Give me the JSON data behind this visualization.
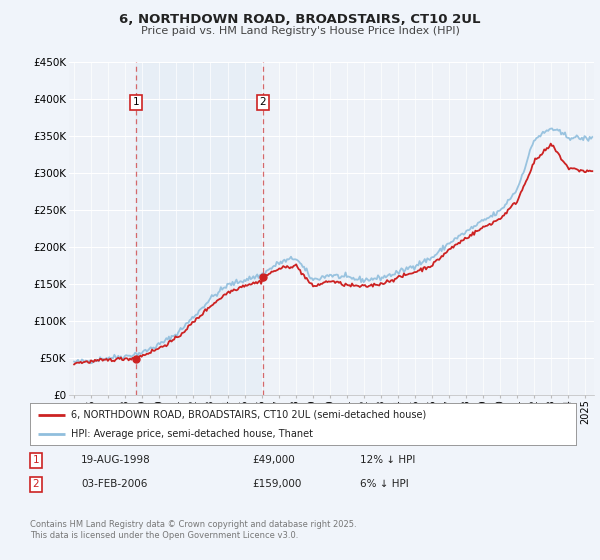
{
  "title": "6, NORTHDOWN ROAD, BROADSTAIRS, CT10 2UL",
  "subtitle": "Price paid vs. HM Land Registry's House Price Index (HPI)",
  "ylim": [
    0,
    450000
  ],
  "xlim_start": 1994.7,
  "xlim_end": 2025.5,
  "background_color": "#f0f4fa",
  "plot_bg_color": "#eef2f8",
  "grid_color": "#ffffff",
  "hpi_color": "#90bedd",
  "price_color": "#cc2222",
  "sale1_x": 1998.62,
  "sale1_y": 49000,
  "sale1_label": "1",
  "sale1_date": "19-AUG-1998",
  "sale1_price": "£49,000",
  "sale1_hpi": "12% ↓ HPI",
  "sale2_x": 2006.08,
  "sale2_y": 159000,
  "sale2_label": "2",
  "sale2_date": "03-FEB-2006",
  "sale2_price": "£159,000",
  "sale2_hpi": "6% ↓ HPI",
  "legend_line1": "6, NORTHDOWN ROAD, BROADSTAIRS, CT10 2UL (semi-detached house)",
  "legend_line2": "HPI: Average price, semi-detached house, Thanet",
  "footer": "Contains HM Land Registry data © Crown copyright and database right 2025.\nThis data is licensed under the Open Government Licence v3.0.",
  "ytick_labels": [
    "£0",
    "£50K",
    "£100K",
    "£150K",
    "£200K",
    "£250K",
    "£300K",
    "£350K",
    "£400K",
    "£450K"
  ],
  "ytick_values": [
    0,
    50000,
    100000,
    150000,
    200000,
    250000,
    300000,
    350000,
    400000,
    450000
  ],
  "hpi_anchors_x": [
    1995.0,
    1996.0,
    1997.0,
    1998.0,
    1999.0,
    2000.0,
    2001.0,
    2002.0,
    2003.0,
    2004.0,
    2005.0,
    2006.0,
    2007.0,
    2008.0,
    2009.0,
    2010.0,
    2011.0,
    2012.0,
    2013.0,
    2014.0,
    2015.0,
    2016.0,
    2017.0,
    2018.0,
    2019.0,
    2020.0,
    2021.0,
    2022.0,
    2023.0,
    2024.0,
    2025.0
  ],
  "hpi_anchors_y": [
    44000,
    46000,
    50000,
    52000,
    57000,
    68000,
    82000,
    105000,
    130000,
    148000,
    155000,
    162000,
    178000,
    185000,
    155000,
    162000,
    158000,
    155000,
    158000,
    165000,
    175000,
    185000,
    205000,
    220000,
    235000,
    248000,
    278000,
    345000,
    360000,
    348000,
    346000
  ],
  "price_anchors_x": [
    1995.0,
    1996.0,
    1997.0,
    1998.0,
    1998.62,
    1999.0,
    2000.0,
    2001.0,
    2002.0,
    2003.0,
    2004.0,
    2005.0,
    2006.0,
    2006.08,
    2007.0,
    2008.0,
    2009.0,
    2010.0,
    2011.0,
    2012.0,
    2013.0,
    2014.0,
    2015.0,
    2016.0,
    2017.0,
    2018.0,
    2019.0,
    2020.0,
    2021.0,
    2022.0,
    2023.0,
    2024.0,
    2025.0
  ],
  "price_anchors_y": [
    43000,
    45000,
    47000,
    49000,
    49000,
    53000,
    63000,
    76000,
    98000,
    120000,
    138000,
    148000,
    153000,
    159000,
    170000,
    175000,
    146000,
    154000,
    148000,
    146000,
    150000,
    158000,
    166000,
    175000,
    196000,
    212000,
    226000,
    238000,
    262000,
    315000,
    338000,
    306000,
    302000
  ]
}
